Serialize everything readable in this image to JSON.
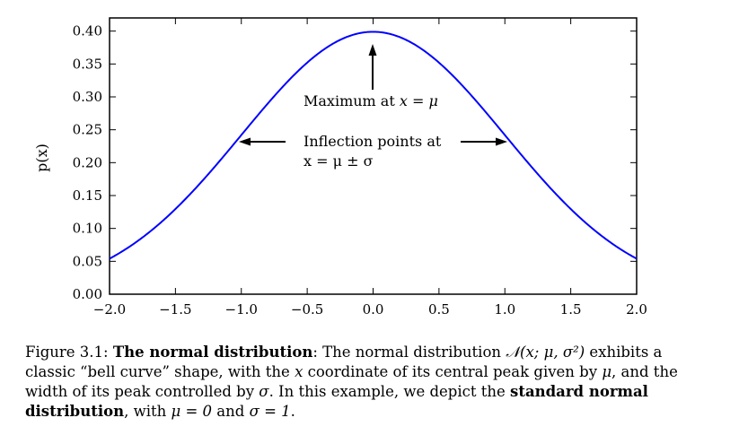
{
  "chart_data": {
    "type": "line",
    "series": [
      {
        "function": "normal_pdf",
        "mu": 0,
        "sigma": 1,
        "color": "#0000ff"
      }
    ],
    "xlim": [
      -2.0,
      2.0
    ],
    "ylim": [
      0.0,
      0.42
    ],
    "xticks": [
      "−2.0",
      "−1.5",
      "−1.0",
      "−0.5",
      "0.0",
      "0.5",
      "1.0",
      "1.5",
      "2.0"
    ],
    "xtick_values": [
      -2.0,
      -1.5,
      -1.0,
      -0.5,
      0.0,
      0.5,
      1.0,
      1.5,
      2.0
    ],
    "yticks": [
      "0.00",
      "0.05",
      "0.10",
      "0.15",
      "0.20",
      "0.25",
      "0.30",
      "0.35",
      "0.40"
    ],
    "ytick_values": [
      0.0,
      0.05,
      0.1,
      0.15,
      0.2,
      0.25,
      0.3,
      0.35,
      0.4
    ],
    "ylabel": "p(x)",
    "xlabel": "",
    "grid": false,
    "annotations": {
      "maximum": {
        "text_prefix": "Maximum at ",
        "math": "x = μ",
        "target": [
          0.0,
          0.3989
        ]
      },
      "inflection": {
        "line1": "Inflection points at",
        "line2_math": "x = μ ± σ",
        "targets": [
          [
            -1.0,
            0.242
          ],
          [
            1.0,
            0.242
          ]
        ]
      }
    }
  },
  "caption": {
    "label": "Figure 3.1: ",
    "bold_title": "The normal distribution",
    "after_title": ": The normal distribution ",
    "math_N": "𝒩(x; μ, σ²)",
    "part1": " exhibits a classic “bell curve” shape, with the ",
    "math_x": "x",
    "part2": " coordinate of its central peak given by ",
    "math_mu": "μ",
    "part3": ", and the width of its peak controlled by ",
    "math_sigma": "σ",
    "part4": ". In this example, we depict the ",
    "bold_std": "standard normal distribution",
    "part5": ", with ",
    "math_mu0": "μ = 0",
    "part6": " and ",
    "math_sigma1": "σ = 1",
    "part7": "."
  }
}
